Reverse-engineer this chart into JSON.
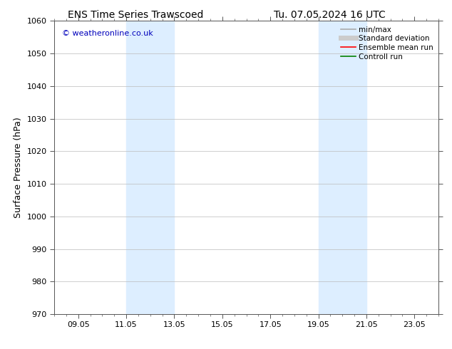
{
  "title_left": "ENS Time Series Trawscoed",
  "title_right": "Tu. 07.05.2024 16 UTC",
  "ylabel": "Surface Pressure (hPa)",
  "ylim": [
    970,
    1060
  ],
  "yticks": [
    970,
    980,
    990,
    1000,
    1010,
    1020,
    1030,
    1040,
    1050,
    1060
  ],
  "xlim": [
    0,
    16
  ],
  "xtick_labels": [
    "09.05",
    "11.05",
    "13.05",
    "15.05",
    "17.05",
    "19.05",
    "21.05",
    "23.05"
  ],
  "xtick_positions": [
    1,
    3,
    5,
    7,
    9,
    11,
    13,
    15
  ],
  "shaded_bands": [
    {
      "x_start": 3,
      "x_end": 5
    },
    {
      "x_start": 11,
      "x_end": 13
    }
  ],
  "shaded_color": "#ddeeff",
  "watermark_text": "© weatheronline.co.uk",
  "watermark_color": "#0000bb",
  "legend_entries": [
    {
      "label": "min/max",
      "color": "#aaaaaa",
      "lw": 1.2
    },
    {
      "label": "Standard deviation",
      "color": "#cccccc",
      "lw": 5
    },
    {
      "label": "Ensemble mean run",
      "color": "#ff0000",
      "lw": 1.2
    },
    {
      "label": "Controll run",
      "color": "#008000",
      "lw": 1.2
    }
  ],
  "bg_color": "#ffffff",
  "grid_color": "#bbbbbb",
  "title_fontsize": 10,
  "ylabel_fontsize": 9,
  "tick_fontsize": 8,
  "legend_fontsize": 7.5,
  "watermark_fontsize": 8
}
